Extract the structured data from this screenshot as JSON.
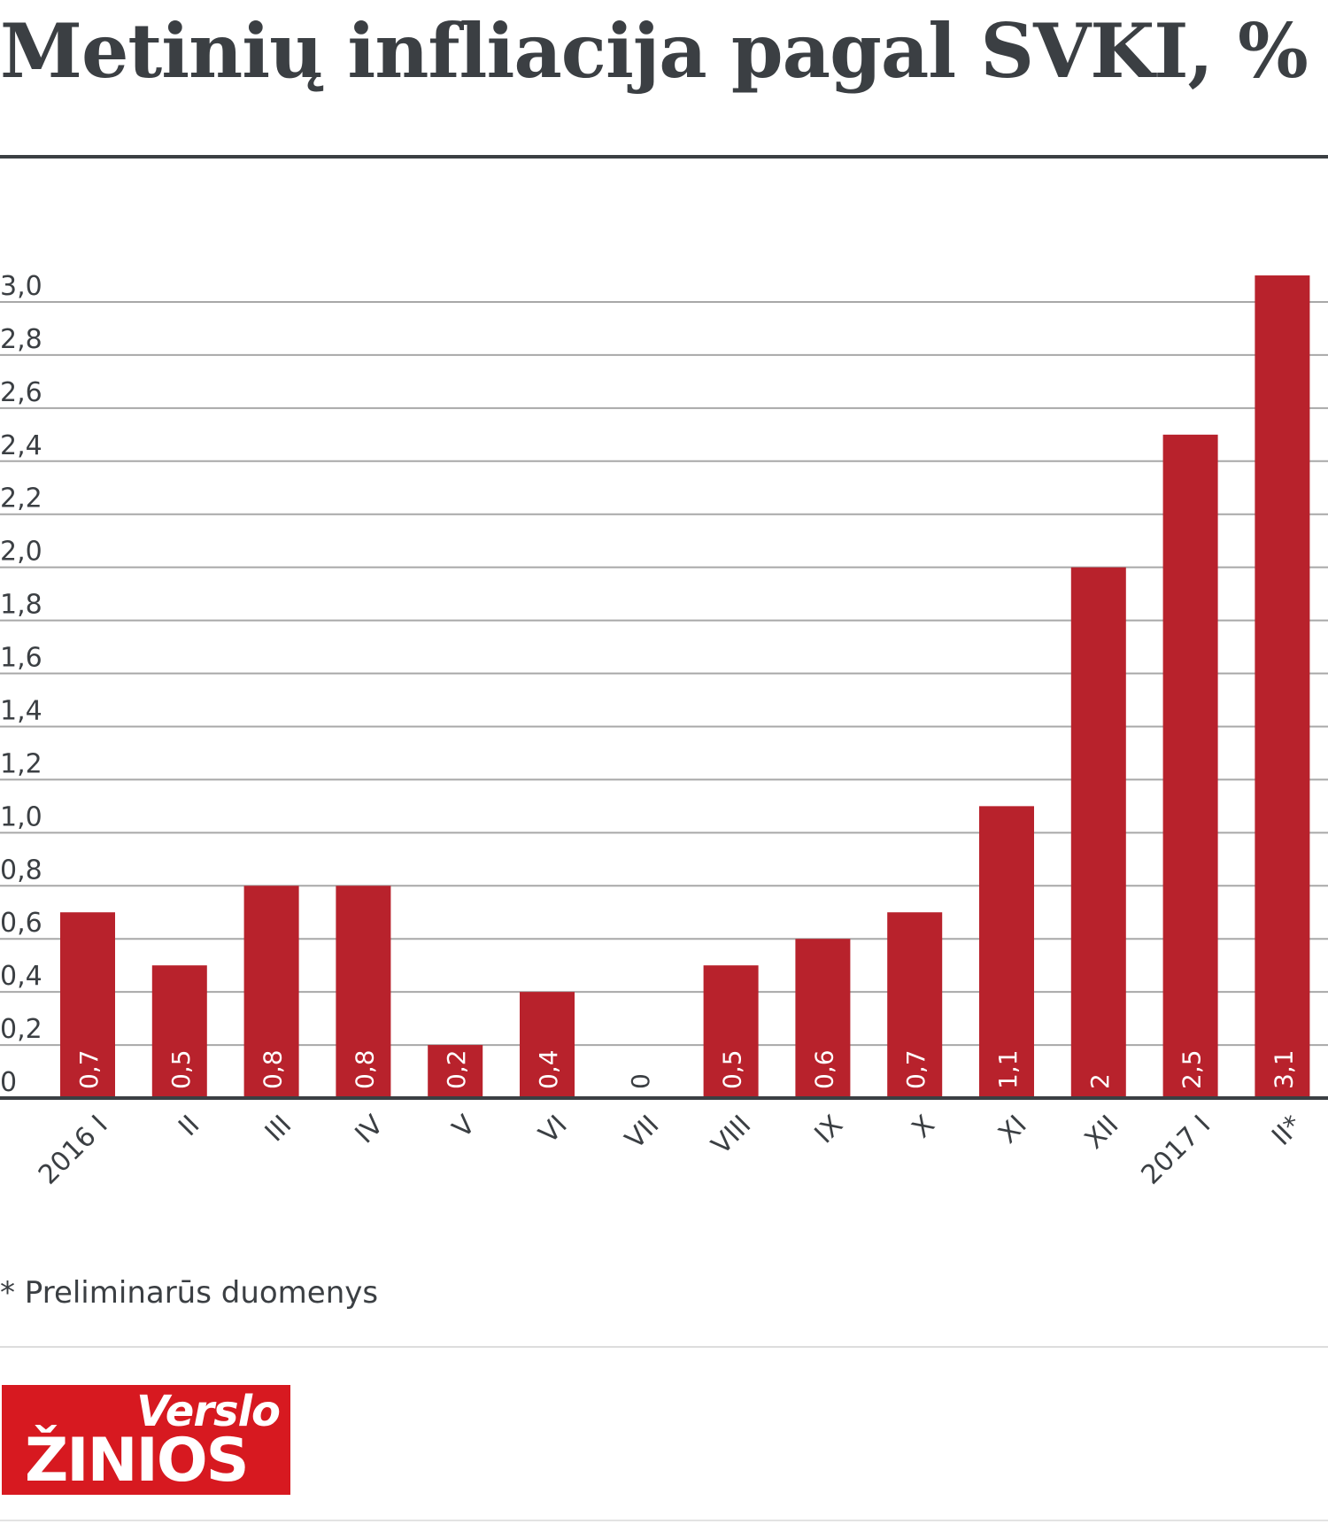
{
  "title": "Metinių infliacija pagal SVKI, %",
  "footnote": "* Preliminarūs duomenys",
  "logo": {
    "top": "Verslo",
    "bottom": "ŽINIOS"
  },
  "colors": {
    "bar": "#b8222c",
    "text": "#3b3f43",
    "grid": "#a8a8a8",
    "axis": "#3b3f43",
    "logo": "#d71920"
  },
  "chart_data": {
    "type": "bar",
    "title": "Metinių infliacija pagal SVKI, %",
    "categories": [
      "2016 I",
      "II",
      "III",
      "IV",
      "V",
      "VI",
      "VII",
      "VIII",
      "IX",
      "X",
      "XI",
      "XII",
      "2017 I",
      "II*"
    ],
    "values": [
      0.7,
      0.5,
      0.8,
      0.8,
      0.2,
      0.4,
      0,
      0.5,
      0.6,
      0.7,
      1.1,
      2,
      2.5,
      3.1
    ],
    "value_labels": [
      "0,7",
      "0,5",
      "0,8",
      "0,8",
      "0,2",
      "0,4",
      "0",
      "0,5",
      "0,6",
      "0,7",
      "1,1",
      "2",
      "2,5",
      "3,1"
    ],
    "yticks": [
      0,
      0.2,
      0.4,
      0.6,
      0.8,
      1.0,
      1.2,
      1.4,
      1.6,
      1.8,
      2.0,
      2.2,
      2.4,
      2.6,
      2.8,
      3.0
    ],
    "ytick_labels": [
      "0",
      "0,2",
      "0,4",
      "0,6",
      "0,8",
      "1,0",
      "1,2",
      "1,4",
      "1,6",
      "1,8",
      "2,0",
      "2,2",
      "2,4",
      "2,6",
      "2,8",
      "3,0"
    ],
    "xlabel": "",
    "ylabel": "",
    "ylim": [
      0,
      3.0
    ],
    "grid": true,
    "legend": "none"
  }
}
